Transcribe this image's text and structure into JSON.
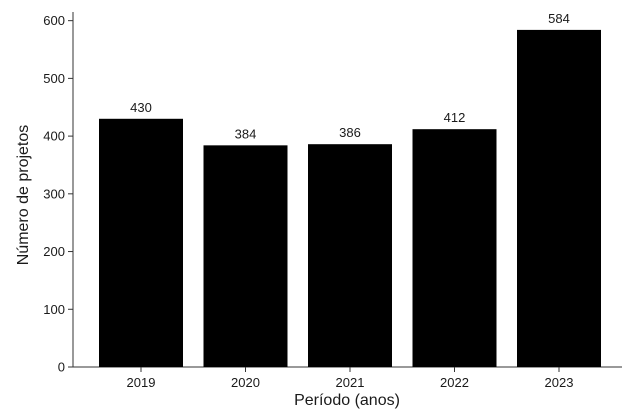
{
  "chart_data": {
    "type": "bar",
    "categories": [
      "2019",
      "2020",
      "2021",
      "2022",
      "2023"
    ],
    "values": [
      430,
      384,
      386,
      412,
      584
    ],
    "data_labels": [
      "430",
      "384",
      "386",
      "412",
      "584"
    ],
    "title": "",
    "xlabel": "Período (anos)",
    "ylabel": "Número de projetos",
    "ylim": [
      0,
      615
    ],
    "yticks": [
      0,
      100,
      200,
      300,
      400,
      500,
      600
    ],
    "ytick_labels": [
      "0",
      "100",
      "200",
      "300",
      "400",
      "500",
      "600"
    ],
    "grid": false,
    "legend": "none",
    "bar_color": "#000000"
  }
}
